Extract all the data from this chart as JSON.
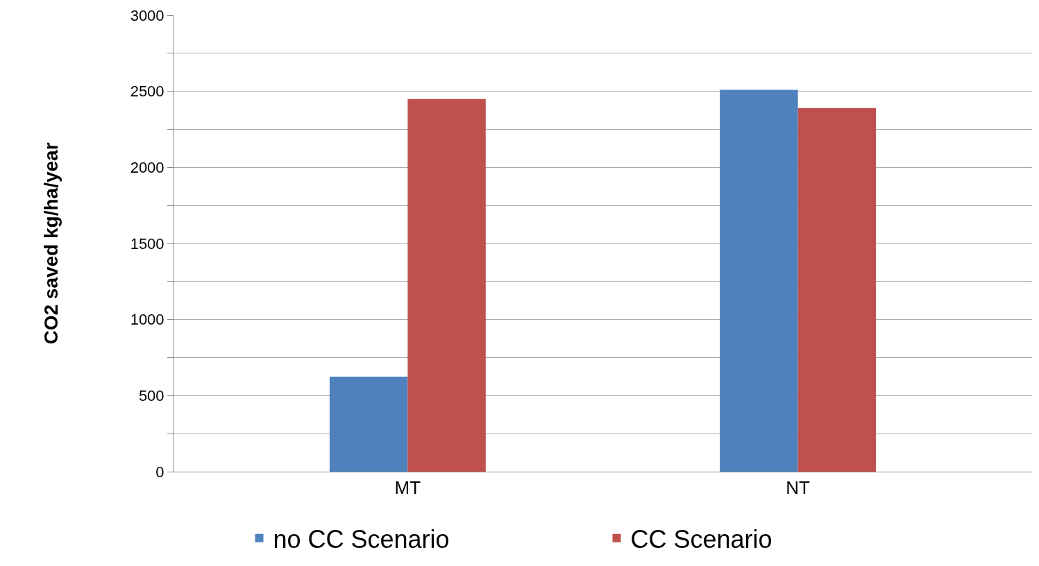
{
  "chart_data": {
    "type": "bar",
    "ylabel": "CO2 saved kg/ha/year",
    "categories": [
      "MT",
      "NT"
    ],
    "series": [
      {
        "name": "no CC Scenario",
        "color": "#4f81bd",
        "values": [
          625,
          2510
        ]
      },
      {
        "name": "CC Scenario",
        "color": "#c0504d",
        "values": [
          2450,
          2390
        ]
      }
    ],
    "ylim": [
      0,
      3000
    ],
    "yticks": [
      0,
      {
        "value": 250,
        "label": null
      },
      500,
      {
        "value": 750,
        "label": null
      },
      1000,
      {
        "value": 1250,
        "label": null
      },
      1500,
      {
        "value": 1750,
        "label": null
      },
      2000,
      {
        "value": 2250,
        "label": null
      },
      2500,
      {
        "value": 2750,
        "label": null
      },
      3000
    ],
    "grid": "y",
    "legend": "bottom"
  }
}
